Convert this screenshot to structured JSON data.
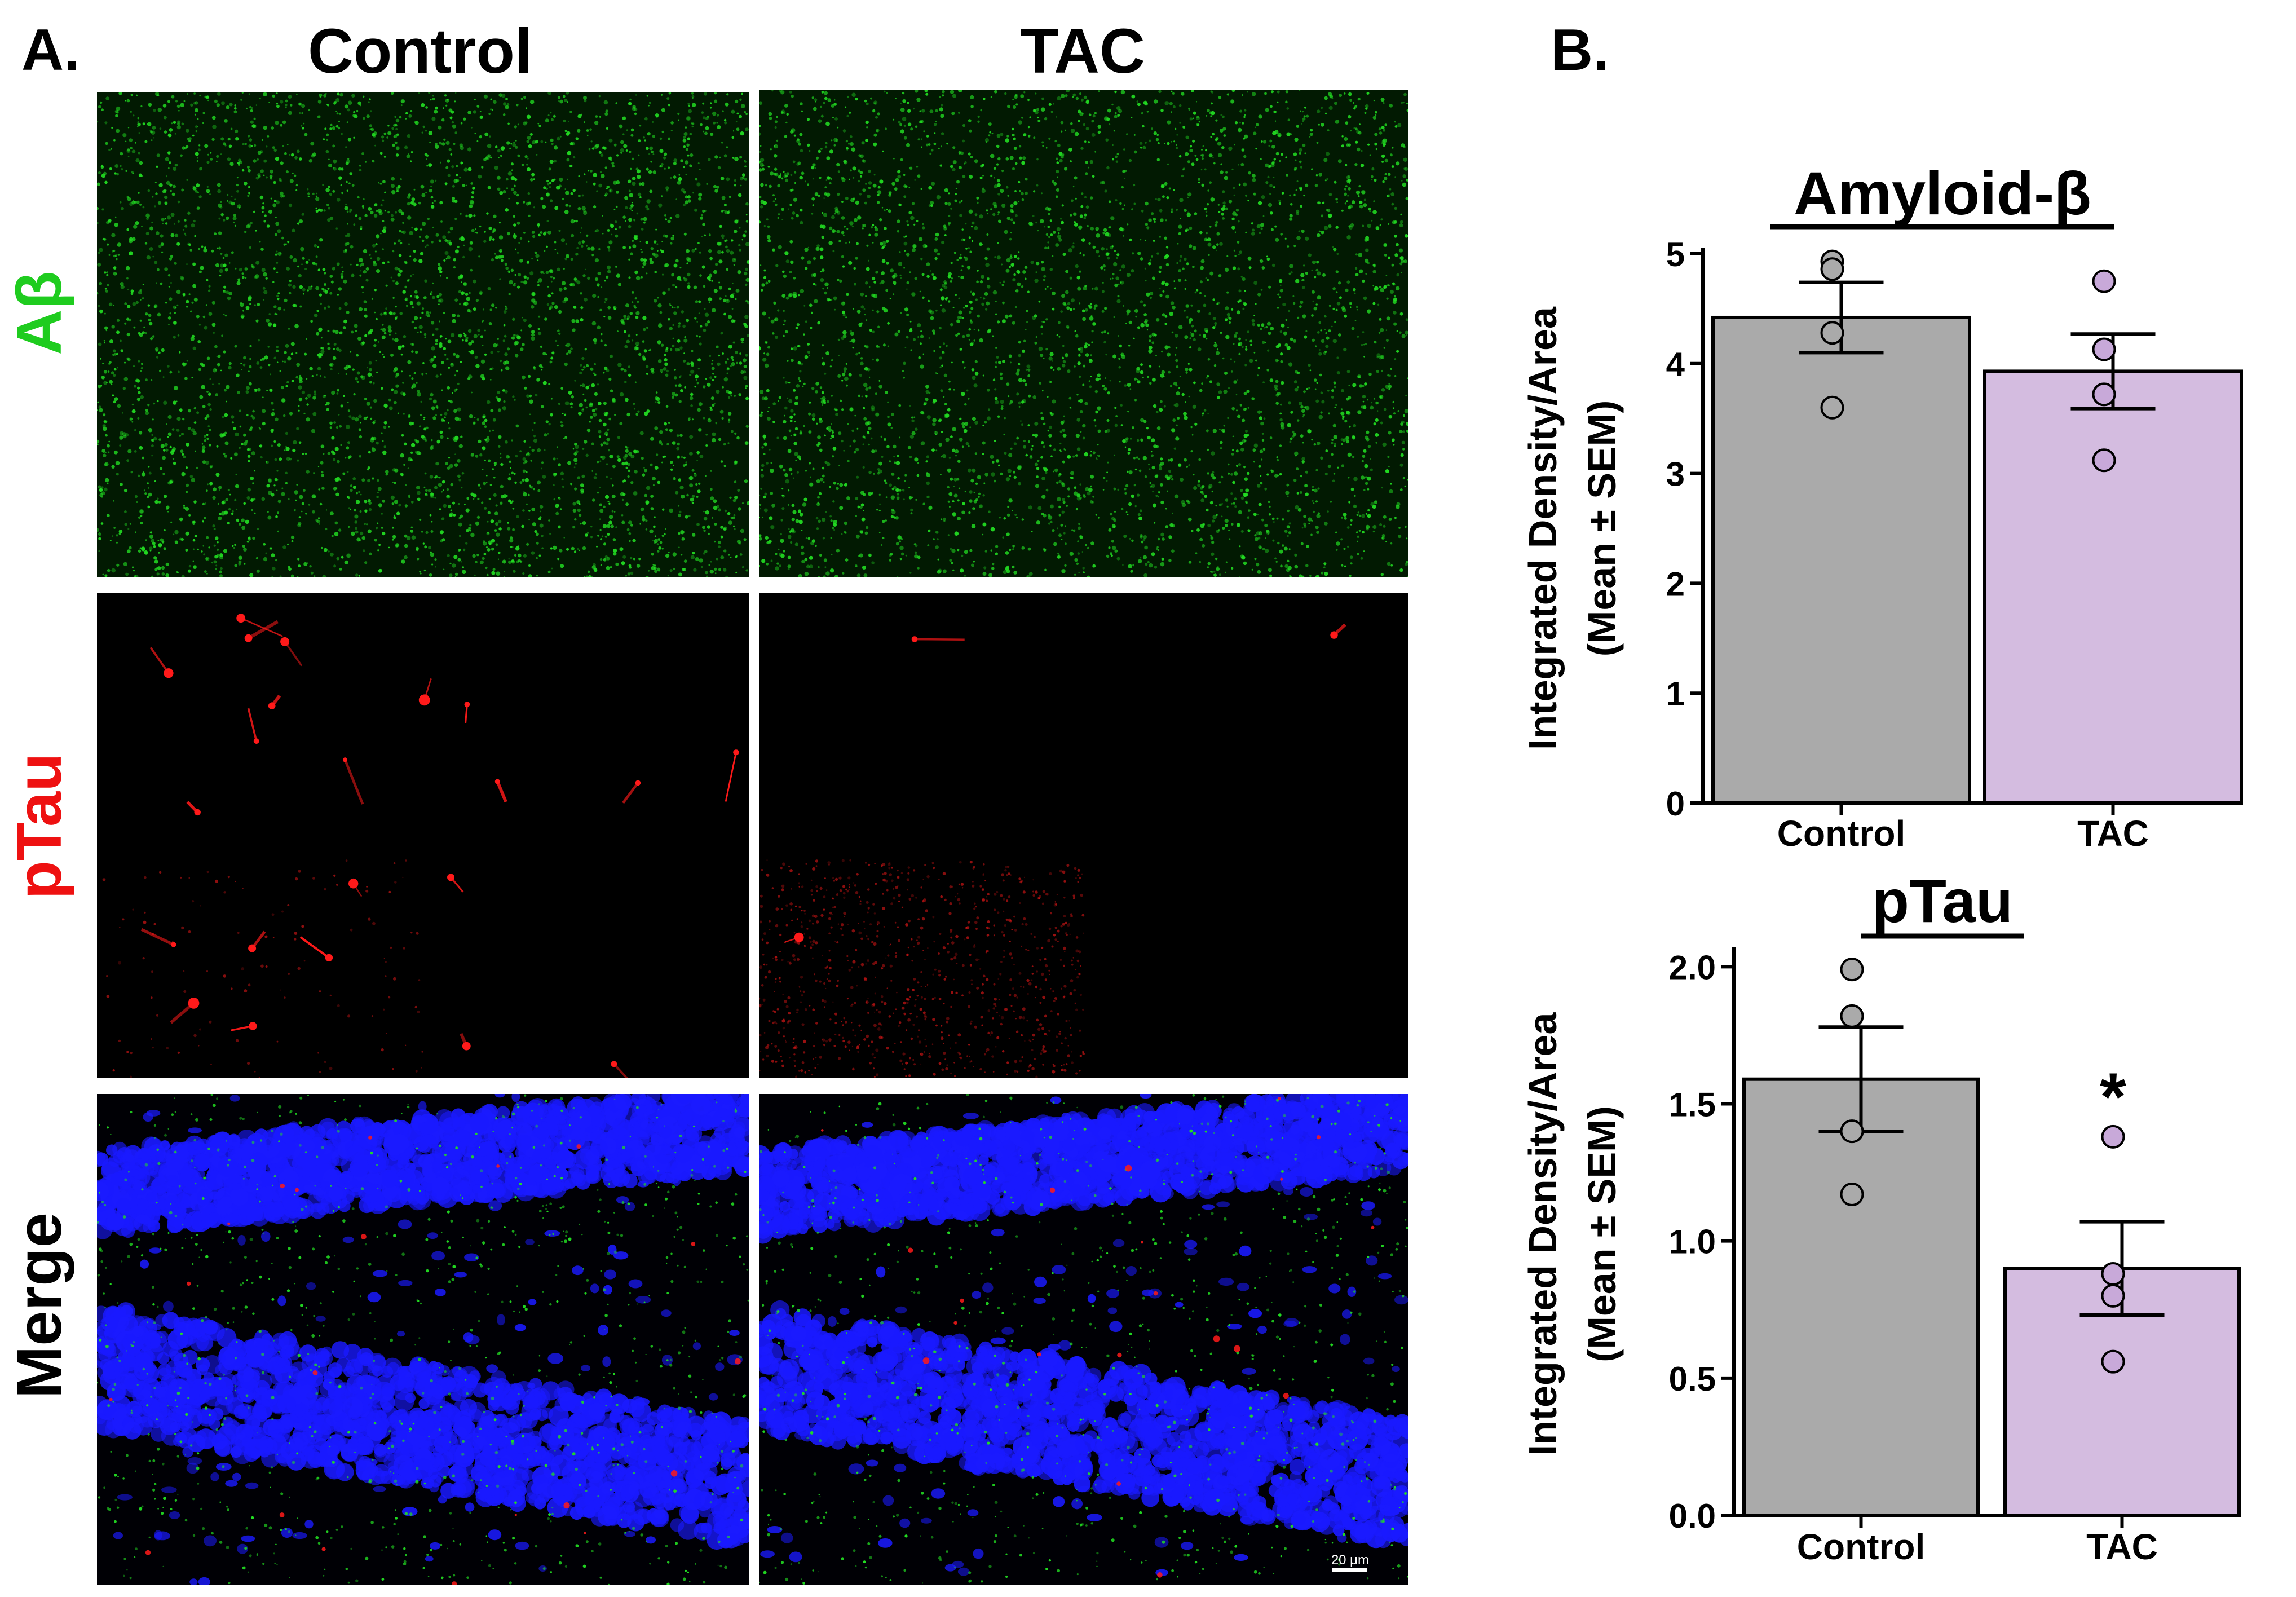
{
  "panel_a": {
    "letter": "A.",
    "columns": [
      "Control",
      "TAC"
    ],
    "rows": [
      {
        "label": "Aβ",
        "color": "#1fcc1f"
      },
      {
        "label": "pTau",
        "color": "#ee1111"
      },
      {
        "label": "Merge",
        "color": "#000000"
      }
    ],
    "scale_bar": "20 μm",
    "stain_colors": {
      "abeta": "#22dd22",
      "ptau": "#ff1a1a",
      "nuclei": "#1a1aff"
    }
  },
  "panel_b": {
    "letter": "B."
  },
  "chart_data": [
    {
      "type": "bar",
      "title": "Amyloid-β",
      "ylabel_line1": "Integrated Density/Area",
      "ylabel_line2": "(Mean ± SEM)",
      "categories": [
        "Control",
        "TAC"
      ],
      "values": [
        4.42,
        3.93
      ],
      "sem": [
        0.32,
        0.34
      ],
      "points": [
        [
          4.93,
          4.86,
          4.28,
          3.6
        ],
        [
          4.75,
          4.13,
          3.72,
          3.12
        ]
      ],
      "ylim": [
        0,
        5
      ],
      "yticks": [
        "0",
        "1",
        "2",
        "3",
        "4",
        "5"
      ],
      "ytick_values": [
        0,
        1,
        2,
        3,
        4,
        5
      ],
      "bar_colors": [
        "#aaaaaa",
        "#d4bce0"
      ],
      "point_colors": [
        "#aaaaaa",
        "#c8a9d9"
      ],
      "annotations": []
    },
    {
      "type": "bar",
      "title": "pTau",
      "ylabel_line1": "Integrated Density/Area",
      "ylabel_line2": "(Mean ± SEM)",
      "categories": [
        "Control",
        "TAC"
      ],
      "values": [
        1.59,
        0.9
      ],
      "sem": [
        0.19,
        0.17
      ],
      "points": [
        [
          1.99,
          1.82,
          1.4,
          1.17
        ],
        [
          1.38,
          0.88,
          0.8,
          0.56
        ]
      ],
      "ylim": [
        0,
        2.05
      ],
      "yticks": [
        "0.0",
        "0.5",
        "1.0",
        "1.5",
        "2.0"
      ],
      "ytick_values": [
        0,
        0.5,
        1.0,
        1.5,
        2.0
      ],
      "bar_colors": [
        "#aaaaaa",
        "#d4bce0"
      ],
      "point_colors": [
        "#aaaaaa",
        "#c8a9d9"
      ],
      "annotations": [
        {
          "text": "*",
          "category": "TAC"
        }
      ]
    }
  ]
}
